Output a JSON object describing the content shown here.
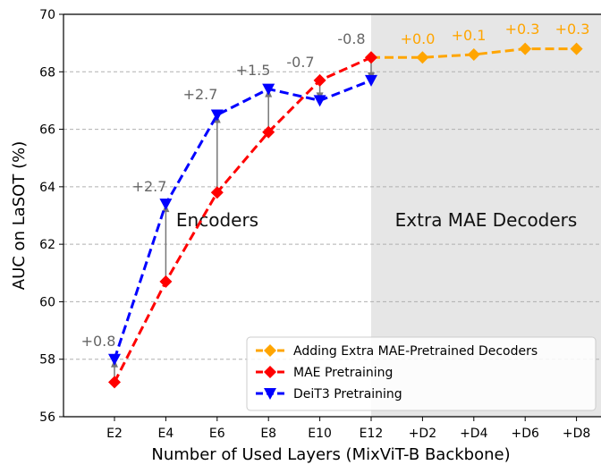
{
  "chart_data": {
    "type": "line",
    "xlabel": "Number of Used Layers (MixViT-B Backbone)",
    "ylabel": "AUC on LaSOT (%)",
    "ylim": [
      56,
      70
    ],
    "yticks": [
      56,
      58,
      60,
      62,
      64,
      66,
      68,
      70
    ],
    "categories": [
      "E2",
      "E4",
      "E6",
      "E8",
      "E10",
      "E12",
      "+D2",
      "+D4",
      "+D6",
      "+D8"
    ],
    "grid": "horizontal dashed",
    "legend_position": "bottom-right",
    "regions": [
      {
        "label": "Encoders",
        "from": "E2",
        "to": "E12",
        "shaded": false
      },
      {
        "label": "Extra MAE Decoders",
        "from": "E12",
        "to": "+D8",
        "shaded": true,
        "color": "#e6e6e6"
      }
    ],
    "series": [
      {
        "name": "Adding Extra MAE-Pretrained Decoders",
        "color": "#ffa500",
        "marker": "diamond",
        "x": [
          "E12",
          "+D2",
          "+D4",
          "+D6",
          "+D8"
        ],
        "values": [
          68.5,
          68.5,
          68.6,
          68.8,
          68.8
        ]
      },
      {
        "name": "MAE Pretraining",
        "color": "#ff0000",
        "marker": "diamond",
        "x": [
          "E2",
          "E4",
          "E6",
          "E8",
          "E10",
          "E12"
        ],
        "values": [
          57.2,
          60.7,
          63.8,
          65.9,
          67.7,
          68.5
        ]
      },
      {
        "name": "DeiT3 Pretraining",
        "color": "#0000ff",
        "marker": "triangle-down",
        "x": [
          "E2",
          "E4",
          "E6",
          "E8",
          "E10",
          "E12"
        ],
        "values": [
          58.0,
          63.4,
          66.5,
          67.4,
          67.0,
          67.7
        ]
      }
    ],
    "diff_annotations": [
      {
        "x": "E2",
        "text": "+0.8",
        "from": 57.2,
        "to": 58.0,
        "color": "#666666"
      },
      {
        "x": "E4",
        "text": "+2.7",
        "from": 60.7,
        "to": 63.4,
        "color": "#666666"
      },
      {
        "x": "E6",
        "text": "+2.7",
        "from": 63.8,
        "to": 66.5,
        "color": "#666666"
      },
      {
        "x": "E8",
        "text": "+1.5",
        "from": 65.9,
        "to": 67.4,
        "color": "#666666"
      },
      {
        "x": "E10",
        "text": "-0.7",
        "from": 67.7,
        "to": 67.0,
        "color": "#666666"
      },
      {
        "x": "E12",
        "text": "-0.8",
        "from": 68.5,
        "to": 67.7,
        "color": "#666666"
      }
    ],
    "decoder_annotations": [
      {
        "x": "+D2",
        "text": "+0.0",
        "color": "#ffa500"
      },
      {
        "x": "+D4",
        "text": "+0.1",
        "color": "#ffa500"
      },
      {
        "x": "+D6",
        "text": "+0.3",
        "color": "#ffa500"
      },
      {
        "x": "+D8",
        "text": "+0.3",
        "color": "#ffa500"
      }
    ]
  }
}
